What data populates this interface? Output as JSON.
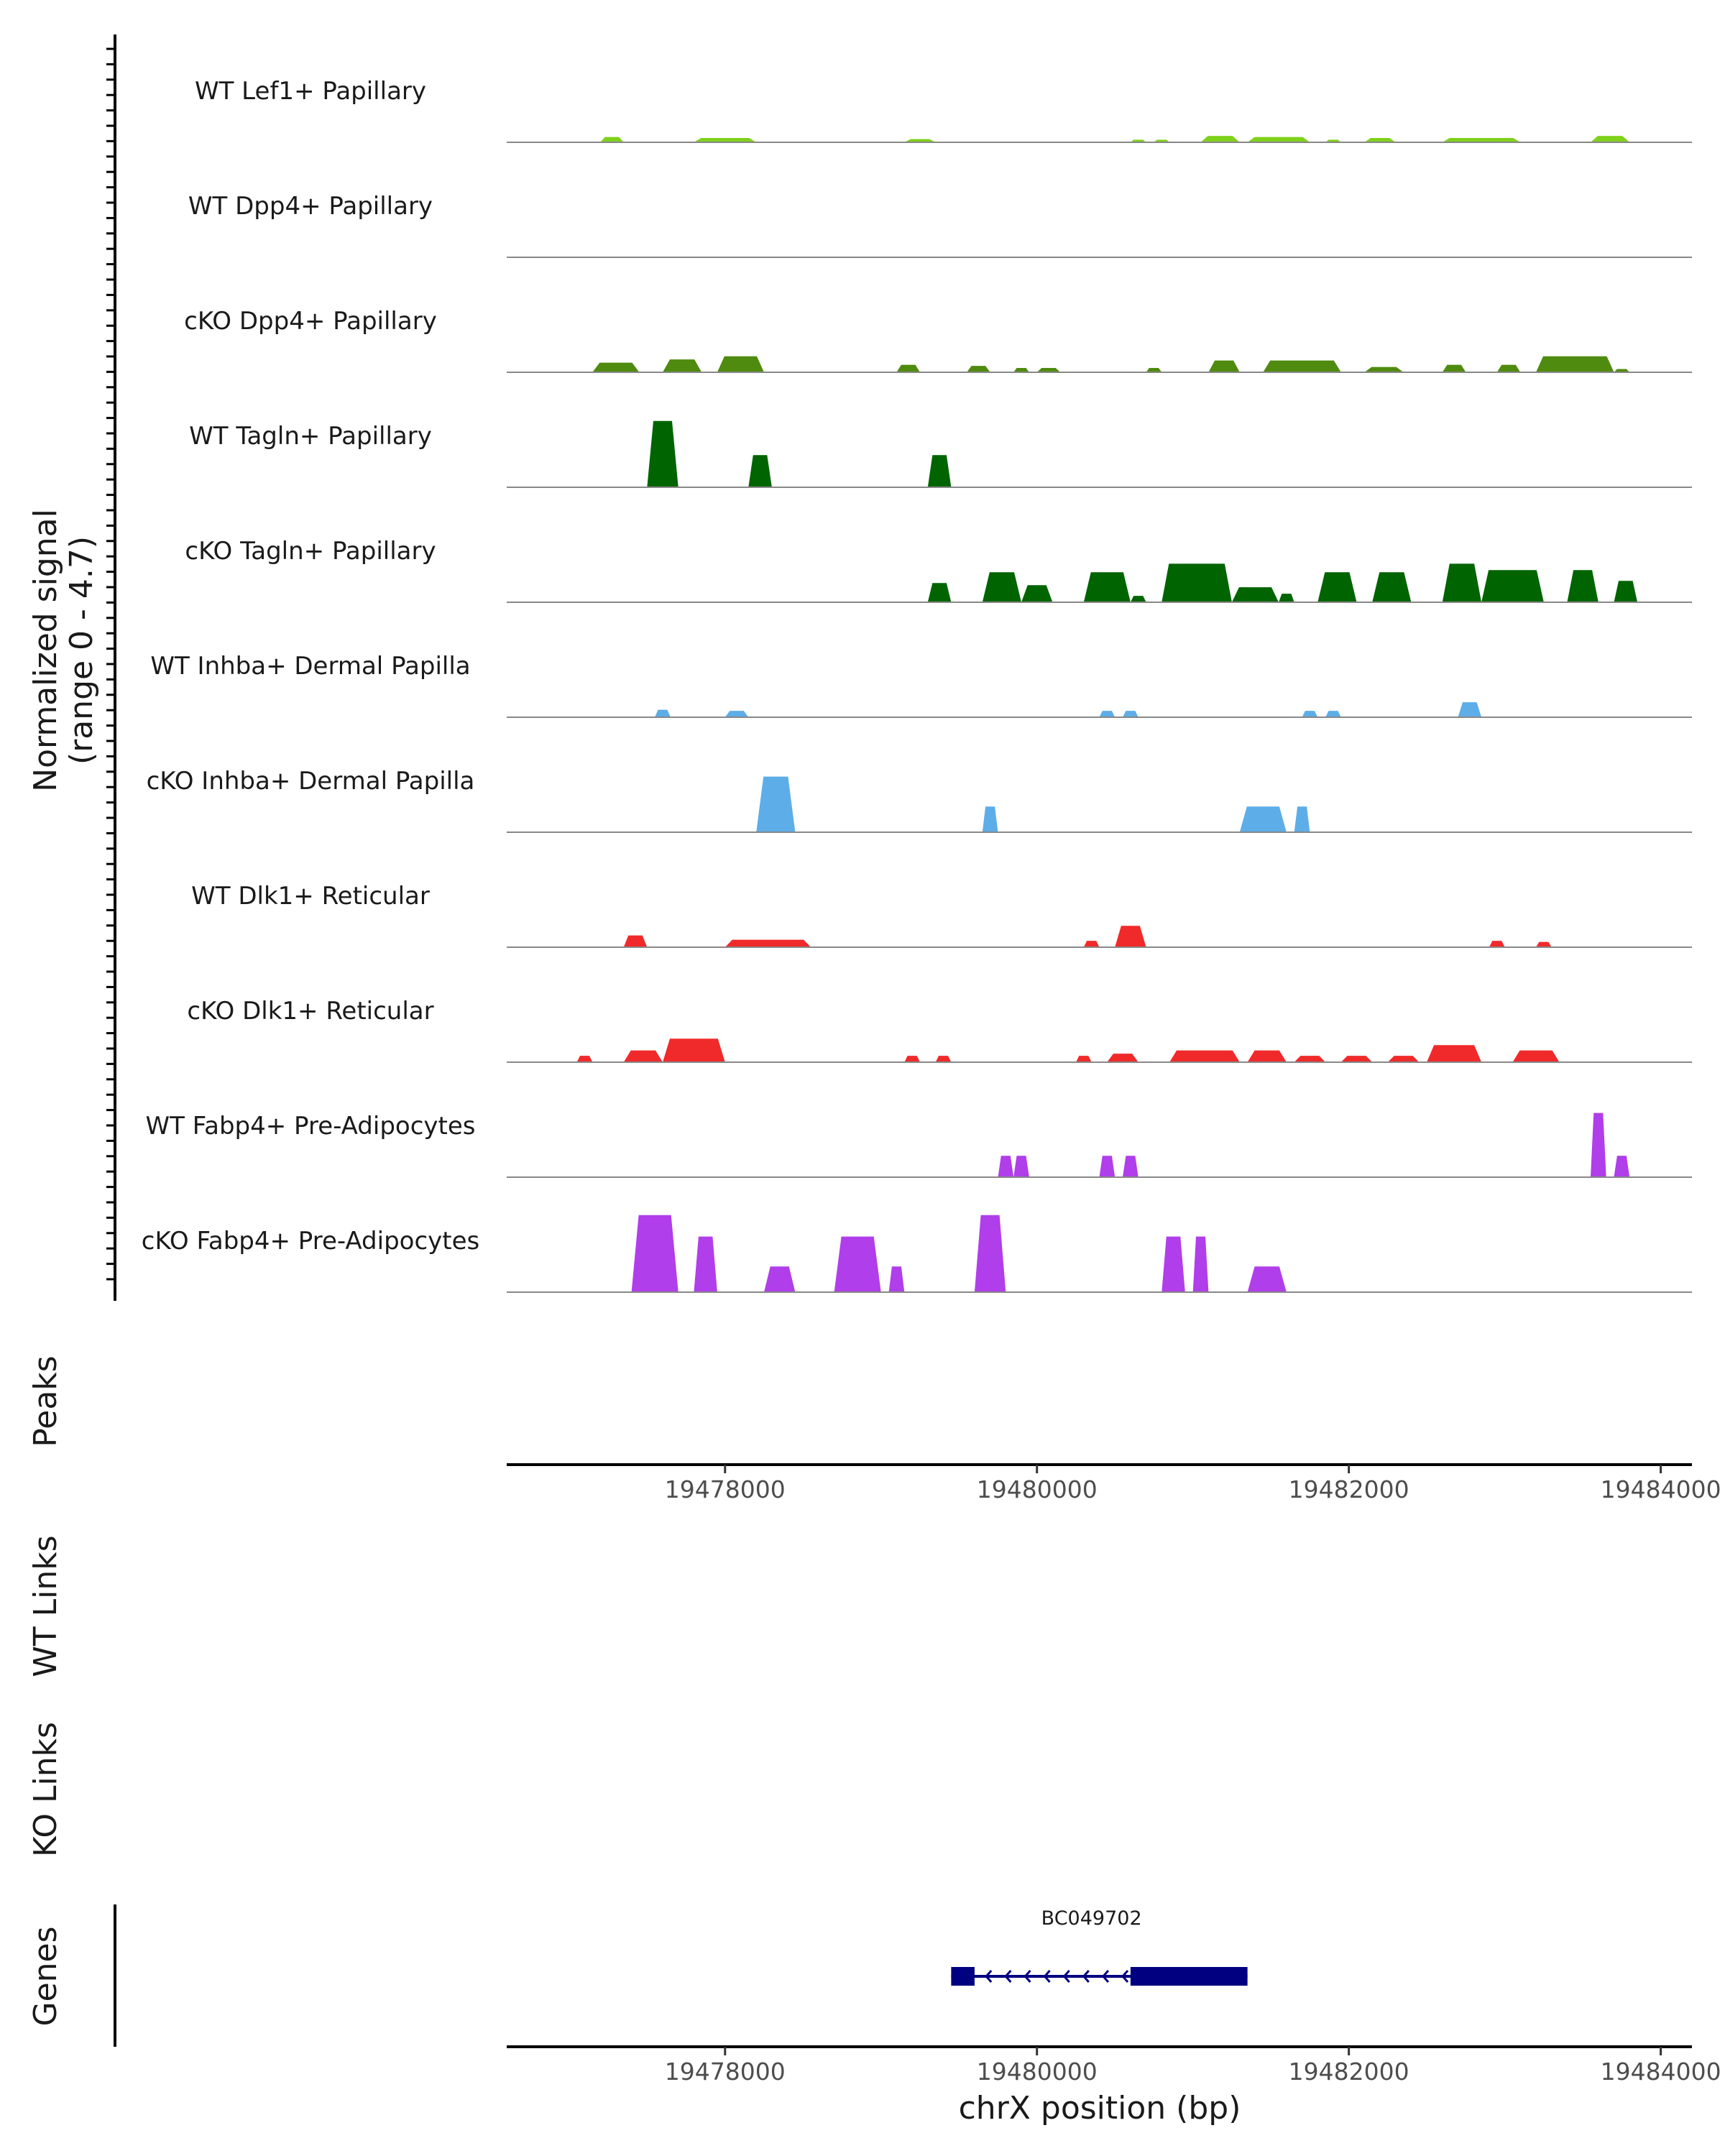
{
  "chart_data": {
    "type": "area",
    "title": "",
    "xlabel": "chrX position (bp)",
    "ylabel": "Normalized signal",
    "ylabel_sub": "(range 0 - 4.7)",
    "xlim": [
      19476600,
      19484200
    ],
    "ylim": [
      0,
      4.7
    ],
    "x_ticks": [
      19478000,
      19480000,
      19482000,
      19484000
    ],
    "x_tick_labels": [
      "19478000",
      "19480000",
      "19482000",
      "19484000"
    ],
    "tracks": [
      {
        "label": "WT Lef1+ Papillary",
        "color": "#7FD11B",
        "peaks": [
          [
            19477200,
            19477350,
            0.25
          ],
          [
            19477800,
            19478200,
            0.2
          ],
          [
            19479150,
            19479350,
            0.15
          ],
          [
            19480600,
            19480700,
            0.12
          ],
          [
            19480750,
            19480850,
            0.12
          ],
          [
            19481050,
            19481300,
            0.3
          ],
          [
            19481350,
            19481750,
            0.25
          ],
          [
            19481850,
            19481950,
            0.12
          ],
          [
            19482100,
            19482300,
            0.2
          ],
          [
            19482600,
            19483100,
            0.2
          ],
          [
            19483550,
            19483800,
            0.3
          ]
        ]
      },
      {
        "label": "WT Dpp4+ Papillary",
        "color": "#7FD11B",
        "peaks": []
      },
      {
        "label": "cKO Dpp4+ Papillary",
        "color": "#4E8B0E",
        "peaks": [
          [
            19477150,
            19477450,
            0.45
          ],
          [
            19477600,
            19477850,
            0.6
          ],
          [
            19477950,
            19478250,
            0.75
          ],
          [
            19479100,
            19479250,
            0.35
          ],
          [
            19479550,
            19479700,
            0.3
          ],
          [
            19479850,
            19479950,
            0.2
          ],
          [
            19480000,
            19480150,
            0.2
          ],
          [
            19480700,
            19480800,
            0.2
          ],
          [
            19481100,
            19481300,
            0.55
          ],
          [
            19481450,
            19481950,
            0.55
          ],
          [
            19482100,
            19482350,
            0.25
          ],
          [
            19482600,
            19482750,
            0.35
          ],
          [
            19482950,
            19483100,
            0.35
          ],
          [
            19483200,
            19483700,
            0.75
          ],
          [
            19483700,
            19483800,
            0.15
          ]
        ]
      },
      {
        "label": "WT Tagln+ Papillary",
        "color": "#006400",
        "peaks": [
          [
            19477500,
            19477700,
            3.1
          ],
          [
            19478150,
            19478300,
            1.5
          ],
          [
            19479300,
            19479450,
            1.5
          ]
        ]
      },
      {
        "label": "cKO Tagln+ Papillary",
        "color": "#006400",
        "peaks": [
          [
            19479300,
            19479450,
            0.9
          ],
          [
            19479650,
            19479900,
            1.4
          ],
          [
            19479900,
            19480100,
            0.8
          ],
          [
            19480300,
            19480600,
            1.4
          ],
          [
            19480600,
            19480700,
            0.3
          ],
          [
            19480800,
            19481250,
            1.8
          ],
          [
            19481250,
            19481550,
            0.7
          ],
          [
            19481550,
            19481650,
            0.4
          ],
          [
            19481800,
            19482050,
            1.4
          ],
          [
            19482150,
            19482400,
            1.4
          ],
          [
            19482600,
            19482850,
            1.8
          ],
          [
            19482850,
            19483250,
            1.5
          ],
          [
            19483400,
            19483600,
            1.5
          ],
          [
            19483700,
            19483850,
            1.0
          ]
        ]
      },
      {
        "label": "WT Inhba+ Dermal Papilla",
        "color": "#5DADE8",
        "peaks": [
          [
            19477550,
            19477650,
            0.35
          ],
          [
            19478000,
            19478150,
            0.3
          ],
          [
            19480400,
            19480500,
            0.3
          ],
          [
            19480550,
            19480650,
            0.3
          ],
          [
            19481700,
            19481800,
            0.3
          ],
          [
            19481850,
            19481950,
            0.3
          ],
          [
            19482700,
            19482850,
            0.7
          ]
        ]
      },
      {
        "label": "cKO Inhba+ Dermal Papilla",
        "color": "#5DADE8",
        "peaks": [
          [
            19478200,
            19478450,
            2.6
          ],
          [
            19479650,
            19479750,
            1.2
          ],
          [
            19481300,
            19481600,
            1.2
          ],
          [
            19481650,
            19481750,
            1.2
          ]
        ]
      },
      {
        "label": "WT Dlk1+ Reticular",
        "color": "#F02A2A",
        "peaks": [
          [
            19477350,
            19477500,
            0.55
          ],
          [
            19478000,
            19478550,
            0.35
          ],
          [
            19480300,
            19480400,
            0.3
          ],
          [
            19480500,
            19480700,
            1.0
          ],
          [
            19482900,
            19483000,
            0.3
          ],
          [
            19483200,
            19483300,
            0.25
          ]
        ]
      },
      {
        "label": "cKO Dlk1+ Reticular",
        "color": "#F02A2A",
        "peaks": [
          [
            19477050,
            19477150,
            0.3
          ],
          [
            19477350,
            19477600,
            0.55
          ],
          [
            19477600,
            19478000,
            1.1
          ],
          [
            19479150,
            19479250,
            0.3
          ],
          [
            19479350,
            19479450,
            0.3
          ],
          [
            19480250,
            19480350,
            0.3
          ],
          [
            19480450,
            19480650,
            0.4
          ],
          [
            19480850,
            19481300,
            0.55
          ],
          [
            19481350,
            19481600,
            0.55
          ],
          [
            19481650,
            19481850,
            0.3
          ],
          [
            19481950,
            19482150,
            0.3
          ],
          [
            19482250,
            19482450,
            0.3
          ],
          [
            19482500,
            19482850,
            0.8
          ],
          [
            19483050,
            19483350,
            0.55
          ]
        ]
      },
      {
        "label": "WT Fabp4+ Pre-Adipocytes",
        "color": "#B03EEA",
        "peaks": [
          [
            19479750,
            19479850,
            1.0
          ],
          [
            19479850,
            19479950,
            1.0
          ],
          [
            19480400,
            19480500,
            1.0
          ],
          [
            19480550,
            19480650,
            1.0
          ],
          [
            19483550,
            19483650,
            3.0
          ],
          [
            19483700,
            19483800,
            1.0
          ]
        ]
      },
      {
        "label": "cKO Fabp4+ Pre-Adipocytes",
        "color": "#B03EEA",
        "peaks": [
          [
            19477400,
            19477700,
            3.6
          ],
          [
            19477800,
            19477950,
            2.6
          ],
          [
            19478250,
            19478450,
            1.2
          ],
          [
            19478700,
            19479000,
            2.6
          ],
          [
            19479050,
            19479150,
            1.2
          ],
          [
            19479600,
            19479800,
            3.6
          ],
          [
            19480800,
            19480950,
            2.6
          ],
          [
            19481000,
            19481100,
            2.6
          ],
          [
            19481350,
            19481600,
            1.2
          ]
        ]
      }
    ],
    "peaks_track": {
      "label": "Peaks",
      "values": []
    },
    "links_tracks": [
      {
        "label": "WT Links",
        "values": []
      },
      {
        "label": "KO Links",
        "values": []
      }
    ],
    "genes": {
      "label": "Genes",
      "items": [
        {
          "name": "BC049702",
          "start": 19479450,
          "end": 19481350,
          "strand": "-",
          "exons": [
            [
              19479450,
              19479600
            ],
            [
              19480600,
              19481350
            ]
          ]
        }
      ]
    }
  }
}
